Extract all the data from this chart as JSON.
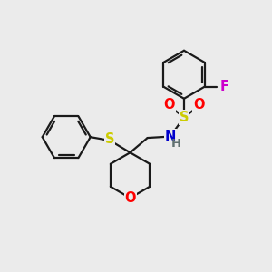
{
  "background_color": "#ebebeb",
  "line_color": "#1a1a1a",
  "atom_colors": {
    "S": "#cccc00",
    "O": "#ff0000",
    "N": "#0000cc",
    "F": "#cc00cc",
    "H": "#607070",
    "C": "#1a1a1a"
  },
  "line_width": 1.6,
  "font_size": 10.5,
  "benzene_r": 0.88,
  "scale": 1.0
}
